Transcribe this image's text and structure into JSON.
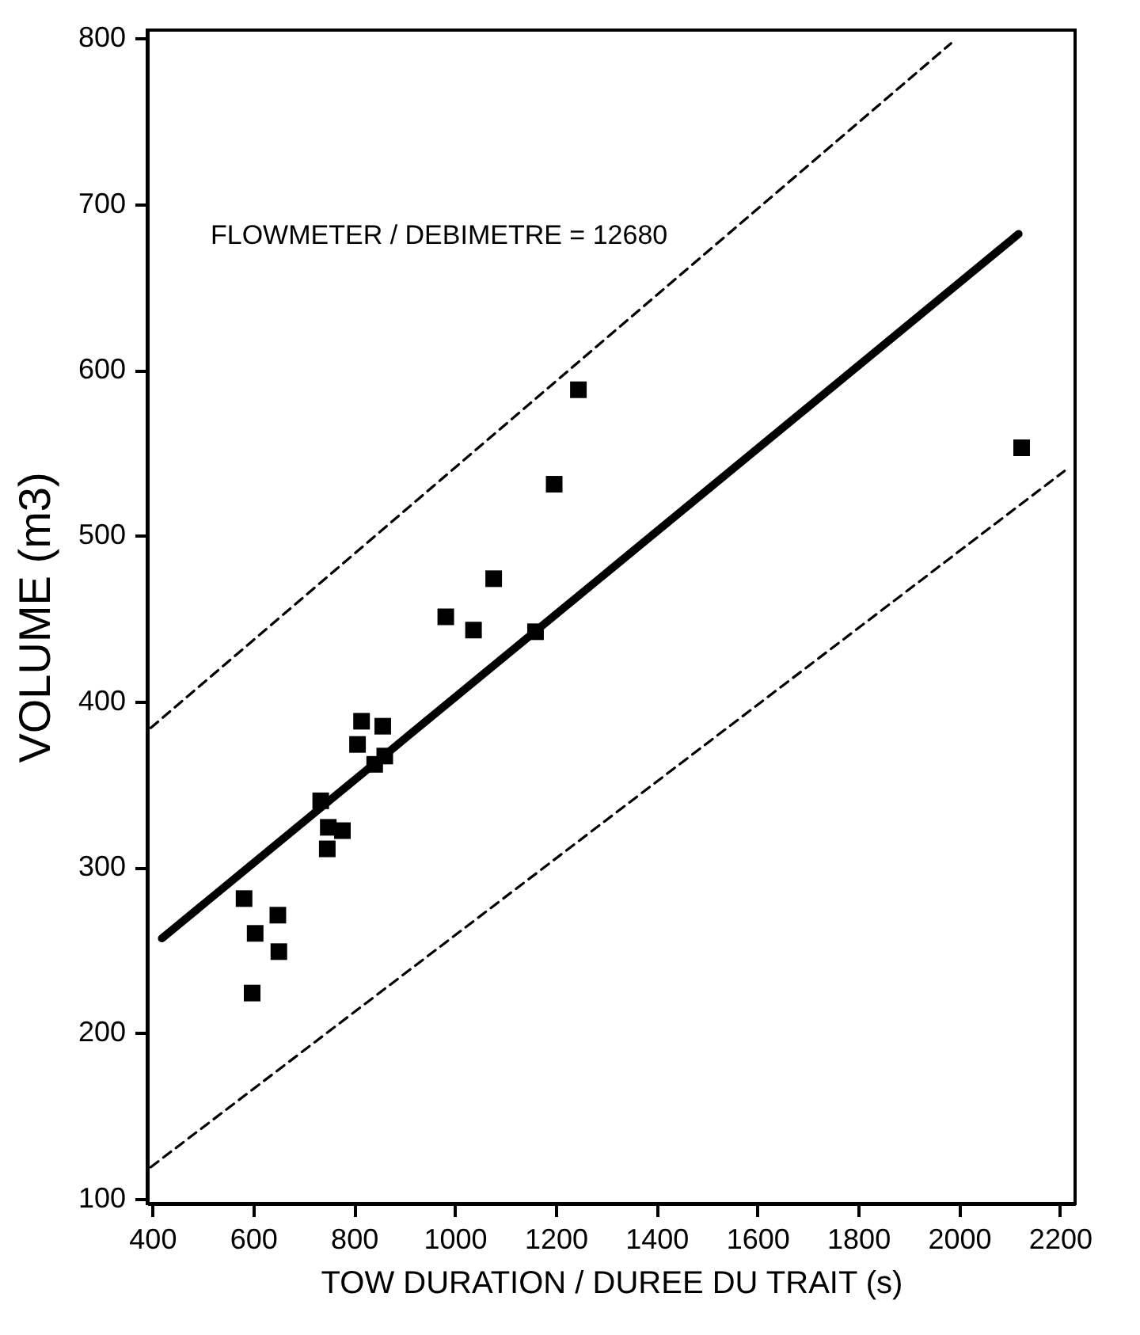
{
  "chart_data": {
    "type": "scatter",
    "xlabel": "TOW   DURATION   /   DUREE   DU   TRAIT   (s)",
    "ylabel": "VOLUME   (m3)",
    "annotations": [
      "FLOWMETER / DEBIMETRE = 12680"
    ],
    "xlim": [
      390,
      2230
    ],
    "ylim": [
      97,
      805
    ],
    "xticks": [
      400,
      600,
      800,
      1000,
      1200,
      1400,
      1600,
      1800,
      2000,
      2200
    ],
    "yticks": [
      100,
      200,
      300,
      400,
      500,
      600,
      700,
      800
    ],
    "grid": false,
    "series": [
      {
        "marker": "square",
        "color": "#000000",
        "x": [
          582,
          604,
          649,
          651,
          598,
          734,
          749,
          777,
          747,
          807,
          815,
          857,
          841,
          861,
          982,
          1037,
          1160,
          1245,
          1197,
          1077,
          2124
        ],
        "values": [
          281,
          260,
          271,
          249,
          224,
          340,
          324,
          322,
          311,
          374,
          388,
          385,
          362,
          367,
          451,
          443,
          442,
          588,
          531,
          474,
          553
        ]
      },
      {
        "type": "line",
        "color": "#000000",
        "line_style": "solid",
        "x": [
          419,
          2118
        ],
        "values": [
          257,
          682
        ]
      },
      {
        "type": "line",
        "color": "#000000",
        "line_style": "dashed",
        "x": [
          397,
          1984
        ],
        "values": [
          384,
          797
        ]
      },
      {
        "type": "line",
        "color": "#000000",
        "line_style": "dashed",
        "x": [
          397,
          2209
        ],
        "values": [
          119,
          539
        ]
      }
    ]
  }
}
